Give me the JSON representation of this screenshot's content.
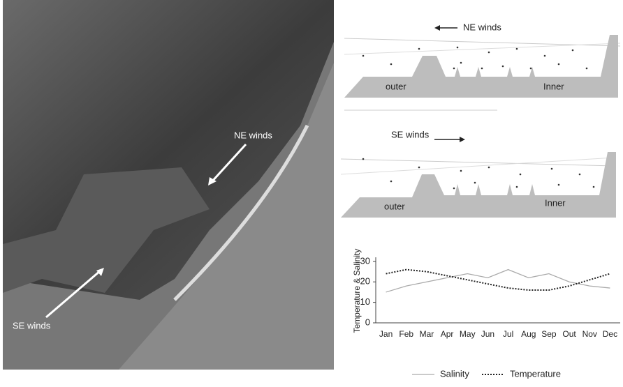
{
  "photo_labels": [
    "NE winds",
    "SE winds"
  ],
  "diagrams": [
    {
      "wind_label": "NE winds",
      "outer_label": "outer",
      "inner_label": "Inner"
    },
    {
      "wind_label": "SE winds",
      "outer_label": "outer",
      "inner_label": "Inner"
    }
  ],
  "chart_data": {
    "type": "line",
    "y_label": "Temperature & Salinity",
    "categories": [
      "Jan",
      "Feb",
      "Mar",
      "Apr",
      "May",
      "Jun",
      "Jul",
      "Aug",
      "Sep",
      "Out",
      "Nov",
      "Dec"
    ],
    "series": [
      {
        "name": "Salinity",
        "color": "#aaaaaa",
        "dash": "solid",
        "values": [
          15,
          18,
          20,
          22,
          24,
          22,
          26,
          22,
          24,
          20,
          18,
          17
        ]
      },
      {
        "name": "Temperature",
        "color": "#222222",
        "dash": "dotted",
        "values": [
          24,
          26,
          25,
          23,
          21,
          19,
          17,
          16,
          16,
          18,
          21,
          24
        ]
      }
    ],
    "ylim": [
      0,
      32
    ],
    "yticks": [
      0,
      10,
      20,
      30
    ],
    "grid": false
  }
}
